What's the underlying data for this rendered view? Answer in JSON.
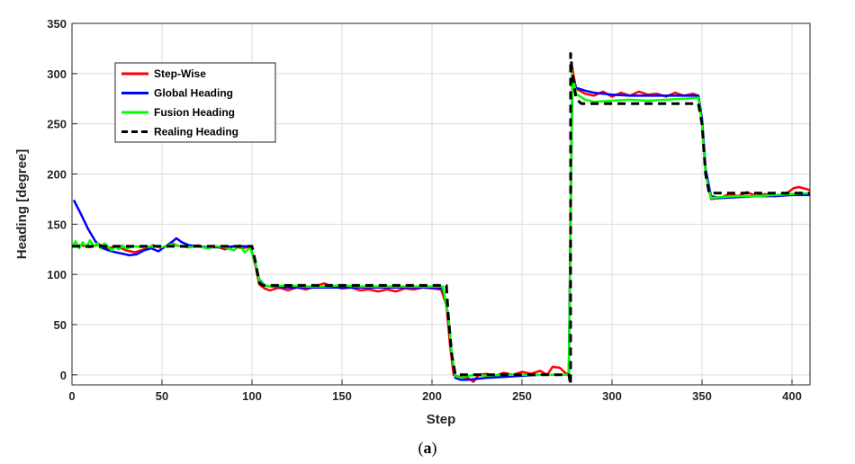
{
  "caption": {
    "open": "(",
    "letter": "a",
    "close": ")"
  },
  "chart_data": {
    "type": "line",
    "xlabel": "Step",
    "ylabel": "Heading [degree]",
    "xlim": [
      0,
      410
    ],
    "ylim": [
      -10,
      350
    ],
    "xticks": [
      0,
      50,
      100,
      150,
      200,
      250,
      300,
      350,
      400
    ],
    "yticks": [
      0,
      50,
      100,
      150,
      200,
      250,
      300,
      350
    ],
    "grid": true,
    "legend": "top-left",
    "series": [
      {
        "name": "Step-Wise",
        "color": "#ff0000",
        "style": "solid",
        "points": [
          [
            0,
            128
          ],
          [
            5,
            129
          ],
          [
            10,
            127
          ],
          [
            15,
            130
          ],
          [
            20,
            126
          ],
          [
            25,
            128
          ],
          [
            30,
            124
          ],
          [
            35,
            122
          ],
          [
            40,
            125
          ],
          [
            45,
            129
          ],
          [
            50,
            126
          ],
          [
            55,
            131
          ],
          [
            60,
            128
          ],
          [
            65,
            127
          ],
          [
            70,
            129
          ],
          [
            75,
            126
          ],
          [
            80,
            128
          ],
          [
            85,
            125
          ],
          [
            90,
            128
          ],
          [
            95,
            126
          ],
          [
            99,
            128
          ],
          [
            102,
            108
          ],
          [
            104,
            90
          ],
          [
            107,
            86
          ],
          [
            110,
            84
          ],
          [
            115,
            87
          ],
          [
            120,
            84
          ],
          [
            125,
            87
          ],
          [
            130,
            85
          ],
          [
            135,
            88
          ],
          [
            140,
            91
          ],
          [
            145,
            88
          ],
          [
            150,
            86
          ],
          [
            155,
            87
          ],
          [
            160,
            84
          ],
          [
            165,
            85
          ],
          [
            170,
            83
          ],
          [
            175,
            85
          ],
          [
            180,
            83
          ],
          [
            185,
            86
          ],
          [
            190,
            85
          ],
          [
            195,
            87
          ],
          [
            200,
            86
          ],
          [
            205,
            85
          ],
          [
            208,
            70
          ],
          [
            210,
            30
          ],
          [
            212,
            0
          ],
          [
            215,
            -2
          ],
          [
            220,
            -3
          ],
          [
            223,
            -7
          ],
          [
            226,
            0
          ],
          [
            230,
            1
          ],
          [
            235,
            -1
          ],
          [
            240,
            2
          ],
          [
            245,
            0
          ],
          [
            250,
            3
          ],
          [
            255,
            1
          ],
          [
            260,
            4
          ],
          [
            264,
            0
          ],
          [
            267,
            8
          ],
          [
            271,
            7
          ],
          [
            274,
            2
          ],
          [
            276,
            0
          ],
          [
            277,
            150
          ],
          [
            278,
            305
          ],
          [
            280,
            285
          ],
          [
            285,
            280
          ],
          [
            290,
            278
          ],
          [
            295,
            282
          ],
          [
            300,
            277
          ],
          [
            305,
            281
          ],
          [
            310,
            278
          ],
          [
            315,
            282
          ],
          [
            320,
            279
          ],
          [
            325,
            280
          ],
          [
            330,
            277
          ],
          [
            335,
            281
          ],
          [
            340,
            278
          ],
          [
            345,
            280
          ],
          [
            348,
            278
          ],
          [
            350,
            250
          ],
          [
            352,
            200
          ],
          [
            355,
            175
          ],
          [
            360,
            176
          ],
          [
            365,
            180
          ],
          [
            370,
            178
          ],
          [
            375,
            182
          ],
          [
            380,
            178
          ],
          [
            385,
            180
          ],
          [
            390,
            178
          ],
          [
            395,
            179
          ],
          [
            398,
            182
          ],
          [
            401,
            186
          ],
          [
            404,
            187
          ],
          [
            410,
            184
          ]
        ]
      },
      {
        "name": "Global Heading",
        "color": "#0000ff",
        "style": "solid",
        "points": [
          [
            1,
            174
          ],
          [
            5,
            160
          ],
          [
            9,
            145
          ],
          [
            13,
            133
          ],
          [
            17,
            126
          ],
          [
            22,
            123
          ],
          [
            27,
            121
          ],
          [
            32,
            119
          ],
          [
            36,
            120
          ],
          [
            40,
            124
          ],
          [
            44,
            126
          ],
          [
            48,
            123
          ],
          [
            52,
            128
          ],
          [
            56,
            133
          ],
          [
            58,
            136
          ],
          [
            61,
            132
          ],
          [
            65,
            129
          ],
          [
            70,
            128
          ],
          [
            75,
            127
          ],
          [
            80,
            127
          ],
          [
            85,
            127
          ],
          [
            90,
            128
          ],
          [
            95,
            128
          ],
          [
            99,
            128
          ],
          [
            102,
            110
          ],
          [
            104,
            95
          ],
          [
            107,
            89
          ],
          [
            110,
            88
          ],
          [
            120,
            87
          ],
          [
            130,
            87
          ],
          [
            140,
            87
          ],
          [
            150,
            87
          ],
          [
            160,
            87
          ],
          [
            170,
            87
          ],
          [
            180,
            87
          ],
          [
            190,
            87
          ],
          [
            200,
            87
          ],
          [
            206,
            86
          ],
          [
            209,
            60
          ],
          [
            211,
            20
          ],
          [
            213,
            -3
          ],
          [
            216,
            -5
          ],
          [
            220,
            -5
          ],
          [
            225,
            -4
          ],
          [
            230,
            -3
          ],
          [
            240,
            -2
          ],
          [
            250,
            -1
          ],
          [
            260,
            0
          ],
          [
            270,
            0
          ],
          [
            276,
            0
          ],
          [
            277,
            160
          ],
          [
            278,
            298
          ],
          [
            280,
            286
          ],
          [
            285,
            283
          ],
          [
            290,
            281
          ],
          [
            300,
            279
          ],
          [
            310,
            278
          ],
          [
            320,
            278
          ],
          [
            330,
            278
          ],
          [
            340,
            278
          ],
          [
            348,
            278
          ],
          [
            350,
            255
          ],
          [
            352,
            205
          ],
          [
            355,
            178
          ],
          [
            360,
            176
          ],
          [
            370,
            177
          ],
          [
            380,
            178
          ],
          [
            390,
            178
          ],
          [
            400,
            179
          ],
          [
            410,
            179
          ]
        ]
      },
      {
        "name": "Fusion Heading",
        "color": "#00ff00",
        "style": "solid",
        "points": [
          [
            0,
            127
          ],
          [
            2,
            133
          ],
          [
            4,
            126
          ],
          [
            6,
            132
          ],
          [
            8,
            127
          ],
          [
            10,
            134
          ],
          [
            12,
            128
          ],
          [
            14,
            131
          ],
          [
            16,
            126
          ],
          [
            18,
            131
          ],
          [
            20,
            128
          ],
          [
            22,
            124
          ],
          [
            24,
            128
          ],
          [
            26,
            125
          ],
          [
            28,
            129
          ],
          [
            30,
            126
          ],
          [
            35,
            128
          ],
          [
            40,
            127
          ],
          [
            45,
            128
          ],
          [
            50,
            127
          ],
          [
            55,
            130
          ],
          [
            60,
            128
          ],
          [
            65,
            127
          ],
          [
            70,
            128
          ],
          [
            75,
            126
          ],
          [
            80,
            128
          ],
          [
            85,
            127
          ],
          [
            90,
            124
          ],
          [
            93,
            129
          ],
          [
            96,
            122
          ],
          [
            99,
            127
          ],
          [
            102,
            110
          ],
          [
            104,
            94
          ],
          [
            107,
            89
          ],
          [
            110,
            88
          ],
          [
            120,
            89
          ],
          [
            130,
            88
          ],
          [
            140,
            88
          ],
          [
            150,
            89
          ],
          [
            160,
            88
          ],
          [
            170,
            88
          ],
          [
            180,
            88
          ],
          [
            190,
            88
          ],
          [
            200,
            88
          ],
          [
            206,
            88
          ],
          [
            209,
            60
          ],
          [
            211,
            20
          ],
          [
            213,
            -1
          ],
          [
            216,
            -3
          ],
          [
            220,
            -1
          ],
          [
            225,
            0
          ],
          [
            230,
            -1
          ],
          [
            240,
            0
          ],
          [
            250,
            0
          ],
          [
            260,
            0
          ],
          [
            270,
            0
          ],
          [
            276,
            0
          ],
          [
            277,
            150
          ],
          [
            278,
            300
          ],
          [
            280,
            280
          ],
          [
            285,
            274
          ],
          [
            290,
            272
          ],
          [
            300,
            273
          ],
          [
            310,
            274
          ],
          [
            320,
            273
          ],
          [
            330,
            274
          ],
          [
            340,
            275
          ],
          [
            348,
            276
          ],
          [
            350,
            250
          ],
          [
            352,
            200
          ],
          [
            355,
            176
          ],
          [
            360,
            177
          ],
          [
            370,
            178
          ],
          [
            380,
            178
          ],
          [
            390,
            179
          ],
          [
            400,
            180
          ],
          [
            410,
            181
          ]
        ]
      },
      {
        "name": "Realing Heading",
        "color": "#000000",
        "style": "dashed",
        "points": [
          [
            0,
            128
          ],
          [
            100,
            128
          ],
          [
            102,
            112
          ],
          [
            104,
            92
          ],
          [
            106,
            89
          ],
          [
            208,
            89
          ],
          [
            209,
            60
          ],
          [
            211,
            20
          ],
          [
            213,
            0
          ],
          [
            276,
            0
          ],
          [
            277,
            -10
          ],
          [
            277,
            320
          ],
          [
            278,
            300
          ],
          [
            280,
            275
          ],
          [
            283,
            270
          ],
          [
            348,
            270
          ],
          [
            350,
            250
          ],
          [
            352,
            200
          ],
          [
            354,
            181
          ],
          [
            410,
            181
          ]
        ]
      }
    ]
  }
}
